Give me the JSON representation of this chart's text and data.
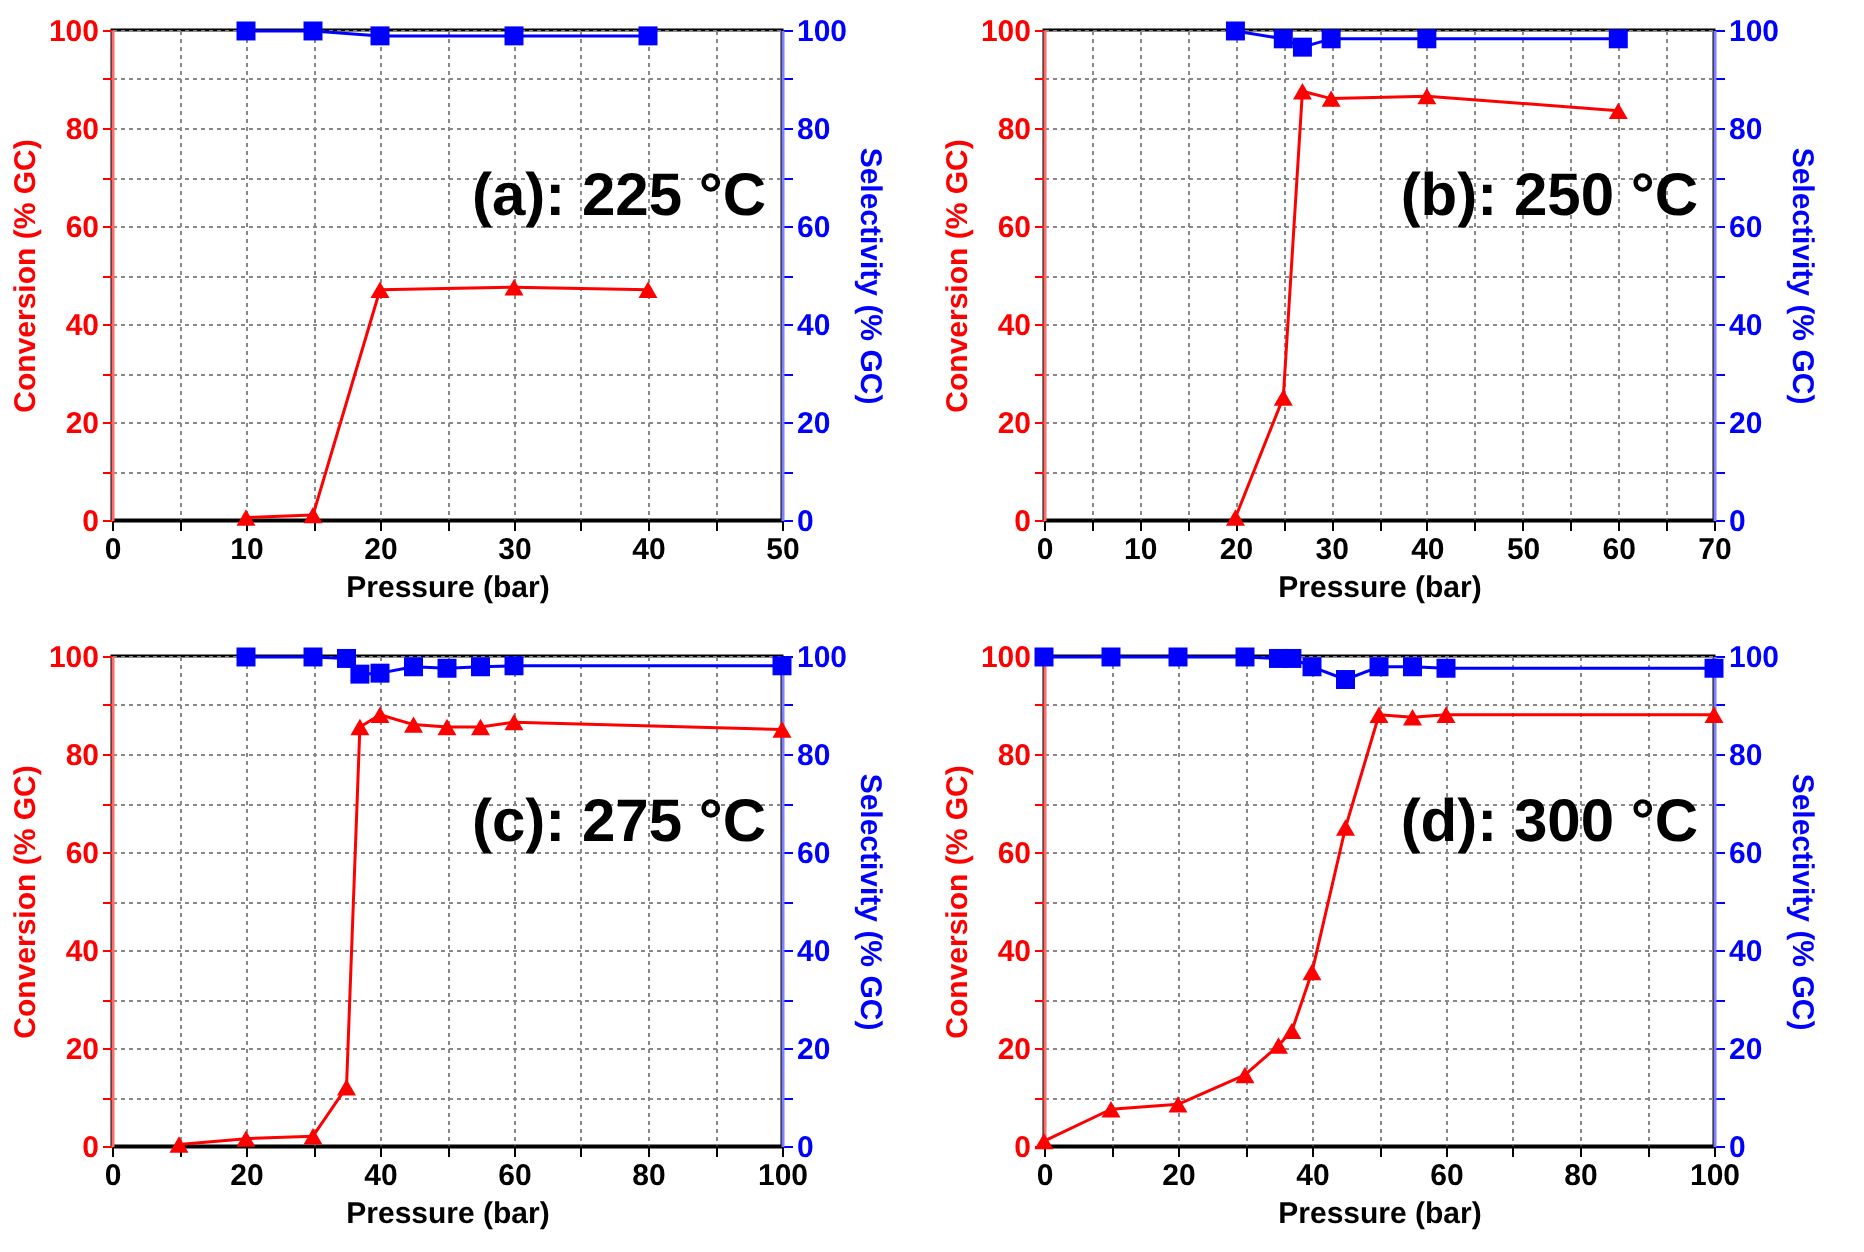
{
  "chart_data": [
    {
      "type": "line",
      "annotations": [
        "(a): 225 °C"
      ],
      "xlabel": "Pressure (bar)",
      "ylabel": "Conversion (% GC)",
      "y2label": "Selectivity (% GC)",
      "xlim": [
        0,
        50
      ],
      "xticks": [
        0,
        {
          "value": 5,
          "label": null
        },
        10,
        {
          "value": 15,
          "label": null
        },
        20,
        {
          "value": 25,
          "label": null
        },
        30,
        {
          "value": 35,
          "label": null
        },
        40,
        {
          "value": 45,
          "label": null
        },
        50
      ],
      "ylim": [
        0,
        100
      ],
      "yticks": [
        0,
        {
          "value": 10,
          "label": null
        },
        20,
        {
          "value": 30,
          "label": null
        },
        40,
        {
          "value": 50,
          "label": null
        },
        60,
        {
          "value": 70,
          "label": null
        },
        80,
        {
          "value": 90,
          "label": null
        },
        100
      ],
      "y2lim": [
        0,
        100
      ],
      "y2ticks": [
        0,
        {
          "value": 10,
          "label": null
        },
        20,
        {
          "value": 30,
          "label": null
        },
        40,
        {
          "value": 50,
          "label": null
        },
        60,
        {
          "value": 70,
          "label": null
        },
        80,
        {
          "value": 90,
          "label": null
        },
        100
      ],
      "grid": true,
      "line_style": "solid",
      "series": [
        {
          "color": "#ff0000",
          "marker": "triangle",
          "x": [
            10,
            15,
            20,
            30,
            40
          ],
          "values": [
            0.5,
            1,
            47,
            47.5,
            47
          ]
        },
        {
          "color": "#0000ff",
          "marker": "square",
          "axis": "y2",
          "x": [
            10,
            15,
            20,
            30,
            40
          ],
          "values": [
            99.8,
            99.8,
            98.8,
            98.8,
            98.8
          ]
        }
      ]
    },
    {
      "type": "line",
      "annotations": [
        "(b): 250 °C"
      ],
      "xlabel": "Pressure (bar)",
      "ylabel": "Conversion (% GC)",
      "y2label": "Selectivity (% GC)",
      "xlim": [
        0,
        70
      ],
      "xticks": [
        0,
        {
          "value": 5,
          "label": null
        },
        10,
        {
          "value": 15,
          "label": null
        },
        20,
        {
          "value": 25,
          "label": null
        },
        30,
        {
          "value": 35,
          "label": null
        },
        40,
        {
          "value": 45,
          "label": null
        },
        50,
        {
          "value": 55,
          "label": null
        },
        60,
        {
          "value": 65,
          "label": null
        },
        70
      ],
      "ylim": [
        0,
        100
      ],
      "yticks": [
        0,
        {
          "value": 10,
          "label": null
        },
        20,
        {
          "value": 30,
          "label": null
        },
        40,
        {
          "value": 50,
          "label": null
        },
        60,
        {
          "value": 70,
          "label": null
        },
        80,
        {
          "value": 90,
          "label": null
        },
        100
      ],
      "y2lim": [
        0,
        100
      ],
      "y2ticks": [
        0,
        {
          "value": 10,
          "label": null
        },
        20,
        {
          "value": 30,
          "label": null
        },
        40,
        {
          "value": 50,
          "label": null
        },
        60,
        {
          "value": 70,
          "label": null
        },
        80,
        {
          "value": 90,
          "label": null
        },
        100
      ],
      "grid": true,
      "line_style": "solid",
      "series": [
        {
          "color": "#ff0000",
          "marker": "triangle",
          "x": [
            20,
            25,
            27,
            30,
            40,
            60
          ],
          "values": [
            0.5,
            25,
            87.5,
            86,
            86.5,
            83.5
          ]
        },
        {
          "color": "#0000ff",
          "marker": "square",
          "axis": "y2",
          "x": [
            20,
            25,
            27,
            30,
            40,
            60
          ],
          "values": [
            99.8,
            98.2,
            96.5,
            98.2,
            98.2,
            98.2
          ]
        }
      ]
    },
    {
      "type": "line",
      "annotations": [
        "(c): 275 °C"
      ],
      "xlabel": "Pressure (bar)",
      "ylabel": "Conversion (% GC)",
      "y2label": "Selectivity (% GC)",
      "xlim": [
        0,
        100
      ],
      "xticks": [
        0,
        {
          "value": 10,
          "label": null
        },
        20,
        {
          "value": 30,
          "label": null
        },
        40,
        {
          "value": 50,
          "label": null
        },
        60,
        {
          "value": 70,
          "label": null
        },
        80,
        {
          "value": 90,
          "label": null
        },
        100
      ],
      "ylim": [
        0,
        100
      ],
      "yticks": [
        0,
        {
          "value": 10,
          "label": null
        },
        20,
        {
          "value": 30,
          "label": null
        },
        40,
        {
          "value": 50,
          "label": null
        },
        60,
        {
          "value": 70,
          "label": null
        },
        80,
        {
          "value": 90,
          "label": null
        },
        100
      ],
      "y2lim": [
        0,
        100
      ],
      "y2ticks": [
        0,
        {
          "value": 10,
          "label": null
        },
        20,
        {
          "value": 30,
          "label": null
        },
        40,
        {
          "value": 50,
          "label": null
        },
        60,
        {
          "value": 70,
          "label": null
        },
        80,
        {
          "value": 90,
          "label": null
        },
        100
      ],
      "grid": true,
      "line_style": "solid",
      "series": [
        {
          "color": "#ff0000",
          "marker": "triangle",
          "x": [
            10,
            20,
            30,
            35,
            37,
            40,
            45,
            50,
            55,
            60,
            100
          ],
          "values": [
            0.3,
            1.5,
            2,
            12,
            85.5,
            88,
            86,
            85.5,
            85.5,
            86.5,
            85
          ]
        },
        {
          "color": "#0000ff",
          "marker": "square",
          "axis": "y2",
          "x": [
            20,
            30,
            35,
            37,
            40,
            45,
            50,
            55,
            60,
            100
          ],
          "values": [
            99.8,
            99.8,
            99.5,
            96.3,
            96.5,
            97.8,
            97.5,
            97.8,
            98,
            98
          ]
        }
      ]
    },
    {
      "type": "line",
      "annotations": [
        "(d): 300 °C"
      ],
      "xlabel": "Pressure (bar)",
      "ylabel": "Conversion (% GC)",
      "y2label": "Selectivity (% GC)",
      "xlim": [
        0,
        100
      ],
      "xticks": [
        0,
        {
          "value": 10,
          "label": null
        },
        20,
        {
          "value": 30,
          "label": null
        },
        40,
        {
          "value": 50,
          "label": null
        },
        60,
        {
          "value": 70,
          "label": null
        },
        80,
        {
          "value": 90,
          "label": null
        },
        100
      ],
      "ylim": [
        0,
        100
      ],
      "yticks": [
        0,
        {
          "value": 10,
          "label": null
        },
        20,
        {
          "value": 30,
          "label": null
        },
        40,
        {
          "value": 50,
          "label": null
        },
        60,
        {
          "value": 70,
          "label": null
        },
        80,
        {
          "value": 90,
          "label": null
        },
        100
      ],
      "y2lim": [
        0,
        100
      ],
      "y2ticks": [
        0,
        {
          "value": 10,
          "label": null
        },
        20,
        {
          "value": 30,
          "label": null
        },
        40,
        {
          "value": 50,
          "label": null
        },
        60,
        {
          "value": 70,
          "label": null
        },
        80,
        {
          "value": 90,
          "label": null
        },
        100
      ],
      "grid": true,
      "line_style": "solid",
      "series": [
        {
          "color": "#ff0000",
          "marker": "triangle",
          "x": [
            0,
            10,
            20,
            30,
            35,
            37,
            40,
            45,
            50,
            55,
            60,
            100
          ],
          "values": [
            1,
            7.5,
            8.5,
            14.5,
            20.5,
            23.5,
            35.5,
            65,
            88,
            87.5,
            88,
            88
          ]
        },
        {
          "color": "#0000ff",
          "marker": "square",
          "axis": "y2",
          "x": [
            0,
            10,
            20,
            30,
            35,
            37,
            40,
            45,
            50,
            55,
            60,
            100
          ],
          "values": [
            99.8,
            99.8,
            99.8,
            99.8,
            99.5,
            99.5,
            97.8,
            95.2,
            97.8,
            97.8,
            97.5,
            97.5
          ]
        }
      ]
    }
  ]
}
